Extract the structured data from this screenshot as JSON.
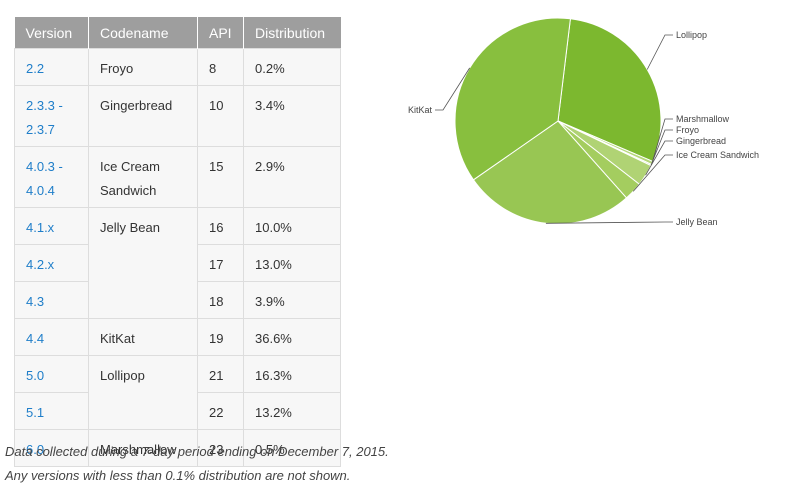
{
  "table": {
    "headers": [
      "Version",
      "Codename",
      "API",
      "Distribution"
    ],
    "rows": [
      {
        "version": "2.2",
        "codename": "Froyo",
        "api": "8",
        "dist": "0.2%"
      },
      {
        "version": "2.3.3 - 2.3.7",
        "codename": "Gingerbread",
        "api": "10",
        "dist": "3.4%"
      },
      {
        "version": "4.0.3 - 4.0.4",
        "codename": "Ice Cream Sandwich",
        "api": "15",
        "dist": "2.9%"
      },
      {
        "version": "4.1.x",
        "codename": "Jelly Bean",
        "api": "16",
        "dist": "10.0%"
      },
      {
        "version": "4.2.x",
        "codename": "",
        "api": "17",
        "dist": "13.0%"
      },
      {
        "version": "4.3",
        "codename": "",
        "api": "18",
        "dist": "3.9%"
      },
      {
        "version": "4.4",
        "codename": "KitKat",
        "api": "19",
        "dist": "36.6%"
      },
      {
        "version": "5.0",
        "codename": "Lollipop",
        "api": "21",
        "dist": "16.3%"
      },
      {
        "version": "5.1",
        "codename": "",
        "api": "22",
        "dist": "13.2%"
      },
      {
        "version": "6.0",
        "codename": "Marshmallow",
        "api": "23",
        "dist": "0.5%"
      }
    ]
  },
  "notes": {
    "line1": "Data collected during a 7-day period ending on December 7, 2015.",
    "line2": "Any versions with less than 0.1% distribution are not shown."
  },
  "colors": {
    "link": "#1f7ec9",
    "header_bg": "#9e9e9e",
    "cell_bg": "#f7f7f7"
  },
  "chart_data": {
    "type": "pie",
    "slices": [
      {
        "label": "Lollipop",
        "value": 29.5,
        "color": "#7cb82f"
      },
      {
        "label": "Marshmallow",
        "value": 0.5,
        "color": "#b5d87a"
      },
      {
        "label": "Froyo",
        "value": 0.2,
        "color": "#b5d87a"
      },
      {
        "label": "Gingerbread",
        "value": 3.4,
        "color": "#b0d374"
      },
      {
        "label": "Ice Cream Sandwich",
        "value": 2.9,
        "color": "#a4cd5f"
      },
      {
        "label": "Jelly Bean",
        "value": 26.9,
        "color": "#98c653"
      },
      {
        "label": "KitKat",
        "value": 36.6,
        "color": "#88bf3e"
      }
    ],
    "legend": "none",
    "labels_placement": "leader-lines"
  }
}
